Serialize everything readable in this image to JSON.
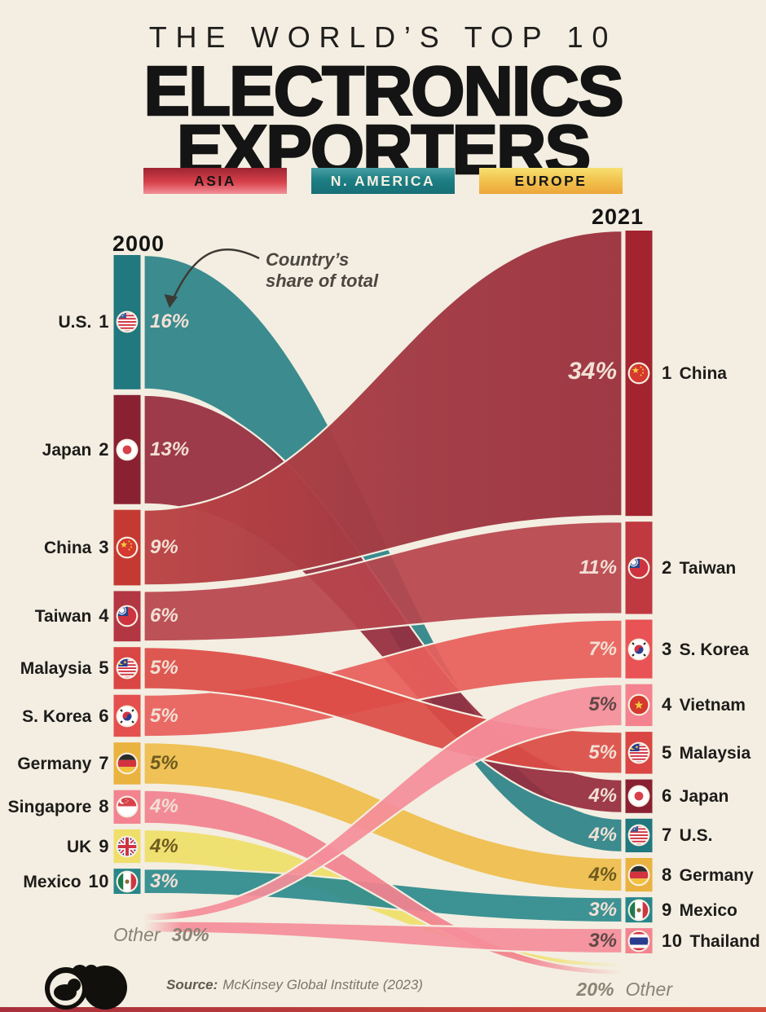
{
  "header": {
    "kicker": "THE WORLD’S TOP 10",
    "title_line1": "ELECTRONICS",
    "title_line2": "EXPORTERS"
  },
  "legend": {
    "items": [
      {
        "label": "ASIA",
        "region": "asia",
        "color": "#d8414a"
      },
      {
        "label": "N. AMERICA",
        "region": "n-america",
        "color": "#1d7f85"
      },
      {
        "label": "EUROPE",
        "region": "europe",
        "color": "#f2c24d"
      }
    ]
  },
  "annotation": {
    "line1": "Country’s",
    "line2": "share of total"
  },
  "footer": {
    "source_label": "Source:",
    "source_text": "McKinsey Global Institute (2023)",
    "logo": "voronoi-logo",
    "bottom_strip_color": "#c23b35"
  },
  "chart_data": {
    "type": "sankey",
    "unit": "%",
    "columns": [
      {
        "year": "2000",
        "other": {
          "label": "Other",
          "share": 30
        }
      },
      {
        "year": "2021",
        "other": {
          "label": "Other",
          "share": 20
        }
      }
    ],
    "background": "#f3eee1",
    "nodes": [
      {
        "id": "us",
        "label": "U.S.",
        "flag": "us",
        "region": "n-america",
        "left": {
          "rank": 1,
          "share": 16
        },
        "right": {
          "rank": 7,
          "share": 4
        },
        "flow_color": "#2c8389",
        "node_color_left": "#21787e",
        "node_color_right": "#21787e",
        "label_style": "light"
      },
      {
        "id": "japan",
        "label": "Japan",
        "flag": "japan",
        "region": "asia",
        "left": {
          "rank": 2,
          "share": 13
        },
        "right": {
          "rank": 6,
          "share": 4
        },
        "flow_color": "#962d3e",
        "node_color_left": "#8a2133",
        "node_color_right": "#8a2133",
        "label_style": "light"
      },
      {
        "id": "china",
        "label": "China",
        "flag": "china",
        "region": "asia",
        "left": {
          "rank": 3,
          "share": 9
        },
        "right": {
          "rank": 1,
          "share": 34
        },
        "flow_color": "gradient-china",
        "node_color_left": "#c43a33",
        "node_color_right": "#a3242f",
        "label_style": "light"
      },
      {
        "id": "taiwan",
        "label": "Taiwan",
        "flag": "taiwan",
        "region": "asia",
        "left": {
          "rank": 4,
          "share": 6
        },
        "right": {
          "rank": 2,
          "share": 11
        },
        "flow_color": "#b7454d",
        "node_color_left": "#b23743",
        "node_color_right": "#c03840",
        "label_style": "light"
      },
      {
        "id": "malaysia",
        "label": "Malaysia",
        "flag": "malaysia",
        "region": "asia",
        "left": {
          "rank": 5,
          "share": 5
        },
        "right": {
          "rank": 5,
          "share": 5
        },
        "flow_color": "#db4c47",
        "node_color_left": "#d94643",
        "node_color_right": "#d94643",
        "label_style": "light"
      },
      {
        "id": "skorea",
        "label": "S. Korea",
        "flag": "skorea",
        "region": "asia",
        "left": {
          "rank": 6,
          "share": 5
        },
        "right": {
          "rank": 3,
          "share": 7
        },
        "flow_color": "#e75f5b",
        "node_color_left": "#e4504e",
        "node_color_right": "#e95356",
        "label_style": "light"
      },
      {
        "id": "germany",
        "label": "Germany",
        "flag": "germany",
        "region": "europe",
        "left": {
          "rank": 7,
          "share": 5
        },
        "right": {
          "rank": 8,
          "share": 4
        },
        "flow_color": "#eebd4b",
        "node_color_left": "#eab23f",
        "node_color_right": "#eab23f",
        "label_style": "dark-gold"
      },
      {
        "id": "singapore",
        "label": "Singapore",
        "flag": "singapore",
        "region": "asia",
        "left": {
          "rank": 8,
          "share": 4
        },
        "right": null,
        "flow_color": "gradient-singapore",
        "node_color_left": "#f2838f",
        "node_color_right": null,
        "label_style": "light"
      },
      {
        "id": "uk",
        "label": "UK",
        "flag": "uk",
        "region": "europe",
        "left": {
          "rank": 9,
          "share": 4
        },
        "right": null,
        "flow_color": "gradient-uk",
        "node_color_left": "#efdf6a",
        "node_color_right": null,
        "label_style": "dark-gold"
      },
      {
        "id": "mexico",
        "label": "Mexico",
        "flag": "mexico",
        "region": "n-america",
        "left": {
          "rank": 10,
          "share": 3
        },
        "right": {
          "rank": 9,
          "share": 3
        },
        "flow_color": "#2e8b8e",
        "node_color_left": "#28868a",
        "node_color_right": "#28868a",
        "label_style": "light"
      },
      {
        "id": "vietnam",
        "label": "Vietnam",
        "flag": "vietnam",
        "region": "asia",
        "left": null,
        "right": {
          "rank": 4,
          "share": 5
        },
        "flow_color": "gradient-vietnam",
        "node_color_left": null,
        "node_color_right": "#f4838f",
        "label_style": "dark-pink"
      },
      {
        "id": "thailand",
        "label": "Thailand",
        "flag": "thailand",
        "region": "asia",
        "left": null,
        "right": {
          "rank": 10,
          "share": 3
        },
        "flow_color": "gradient-thailand",
        "node_color_left": null,
        "node_color_right": "#f4838f",
        "label_style": "dark-pink"
      }
    ]
  }
}
